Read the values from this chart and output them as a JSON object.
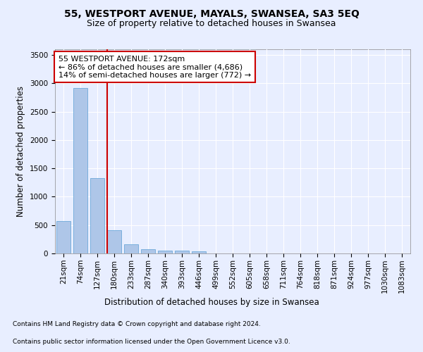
{
  "title": "55, WESTPORT AVENUE, MAYALS, SWANSEA, SA3 5EQ",
  "subtitle": "Size of property relative to detached houses in Swansea",
  "xlabel": "Distribution of detached houses by size in Swansea",
  "ylabel": "Number of detached properties",
  "bar_categories": [
    "21sqm",
    "74sqm",
    "127sqm",
    "180sqm",
    "233sqm",
    "287sqm",
    "340sqm",
    "393sqm",
    "446sqm",
    "499sqm",
    "552sqm",
    "605sqm",
    "658sqm",
    "711sqm",
    "764sqm",
    "818sqm",
    "871sqm",
    "924sqm",
    "977sqm",
    "1030sqm",
    "1083sqm"
  ],
  "bar_values": [
    575,
    2920,
    1330,
    415,
    160,
    80,
    55,
    48,
    40,
    0,
    0,
    0,
    0,
    0,
    0,
    0,
    0,
    0,
    0,
    0,
    0
  ],
  "bar_color": "#aec6e8",
  "bar_edge_color": "#5a9fd4",
  "vline_x_index": 2.6,
  "vline_color": "#cc0000",
  "annotation_line1": "55 WESTPORT AVENUE: 172sqm",
  "annotation_line2": "← 86% of detached houses are smaller (4,686)",
  "annotation_line3": "14% of semi-detached houses are larger (772) →",
  "annotation_box_color": "#ffffff",
  "annotation_box_edge_color": "#cc0000",
  "ylim": [
    0,
    3600
  ],
  "yticks": [
    0,
    500,
    1000,
    1500,
    2000,
    2500,
    3000,
    3500
  ],
  "background_color": "#e8eeff",
  "grid_color": "#ffffff",
  "footnote_line1": "Contains HM Land Registry data © Crown copyright and database right 2024.",
  "footnote_line2": "Contains public sector information licensed under the Open Government Licence v3.0.",
  "title_fontsize": 10,
  "subtitle_fontsize": 9,
  "axis_label_fontsize": 8.5,
  "tick_fontsize": 7.5,
  "annotation_fontsize": 8,
  "footnote_fontsize": 6.5
}
